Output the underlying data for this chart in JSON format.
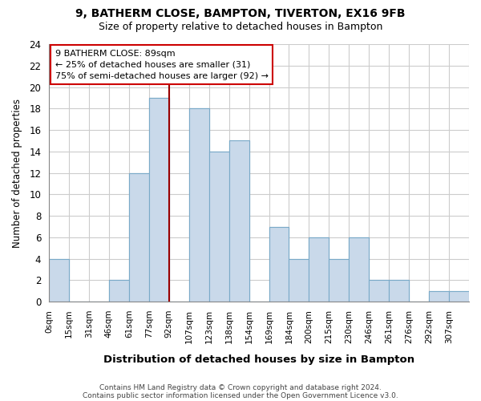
{
  "title1": "9, BATHERM CLOSE, BAMPTON, TIVERTON, EX16 9FB",
  "title2": "Size of property relative to detached houses in Bampton",
  "xlabel": "Distribution of detached houses by size in Bampton",
  "ylabel": "Number of detached properties",
  "bin_labels": [
    "0sqm",
    "15sqm",
    "31sqm",
    "46sqm",
    "61sqm",
    "77sqm",
    "92sqm",
    "107sqm",
    "123sqm",
    "138sqm",
    "154sqm",
    "169sqm",
    "184sqm",
    "200sqm",
    "215sqm",
    "230sqm",
    "246sqm",
    "261sqm",
    "276sqm",
    "292sqm",
    "307sqm"
  ],
  "bar_values": [
    4,
    0,
    0,
    2,
    12,
    19,
    0,
    18,
    14,
    15,
    0,
    7,
    4,
    6,
    4,
    6,
    2,
    2,
    0,
    1,
    1
  ],
  "bar_color": "#c9d9ea",
  "bar_edge_color": "#7aaac8",
  "vline_color": "#990000",
  "annotation_text": "9 BATHERM CLOSE: 89sqm\n← 25% of detached houses are smaller (31)\n75% of semi-detached houses are larger (92) →",
  "annotation_box_edgecolor": "#cc0000",
  "ylim": [
    0,
    24
  ],
  "yticks": [
    0,
    2,
    4,
    6,
    8,
    10,
    12,
    14,
    16,
    18,
    20,
    22,
    24
  ],
  "footer1": "Contains HM Land Registry data © Crown copyright and database right 2024.",
  "footer2": "Contains public sector information licensed under the Open Government Licence v3.0.",
  "bg_color": "#ffffff",
  "grid_color": "#cccccc"
}
